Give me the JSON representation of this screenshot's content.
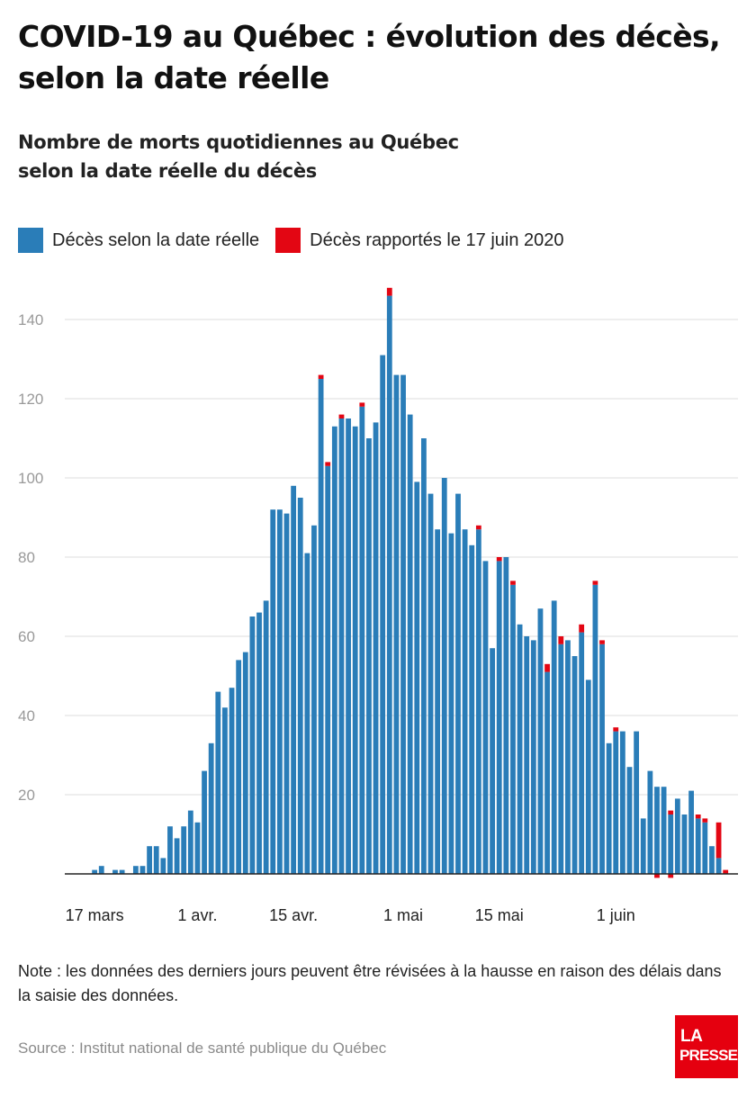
{
  "title": "COVID-19 au Québec : évolution des décès, selon la date réelle",
  "subtitle_line1": "Nombre de morts quotidiennes au Québec",
  "subtitle_line2": "selon la date réelle du décès",
  "note": "Note : les données des derniers jours peuvent être révisées à la hausse en raison des délais dans la saisie des données.",
  "source": "Source : Institut national de santé publique du Québec",
  "logo": {
    "line1": "LA",
    "line2": "PRESSE"
  },
  "colors": {
    "blue": "#2a7db8",
    "red": "#e30613",
    "grid": "#dddddd",
    "axis": "#222222"
  },
  "chart_data": {
    "type": "bar",
    "stacked": true,
    "start_date": "2020-03-15",
    "legend": [
      {
        "name": "Décès selon la date réelle",
        "color": "#2a7db8"
      },
      {
        "name": "Décès rapportés le 17 juin 2020",
        "color": "#e30613"
      }
    ],
    "y_ticks": [
      20,
      40,
      60,
      80,
      100,
      120,
      140
    ],
    "ylim": [
      0,
      150
    ],
    "grid": true,
    "x_tick_labels": [
      {
        "label": "17 mars",
        "index": 2
      },
      {
        "label": "1 avr.",
        "index": 17
      },
      {
        "label": "15 avr.",
        "index": 31
      },
      {
        "label": "1 mai",
        "index": 47
      },
      {
        "label": "15 mai",
        "index": 61
      },
      {
        "label": "1 juin",
        "index": 78
      }
    ],
    "series": [
      {
        "name": "Décès selon la date réelle",
        "values": [
          0,
          0,
          1,
          2,
          0,
          1,
          1,
          0,
          2,
          2,
          7,
          7,
          4,
          12,
          9,
          12,
          16,
          13,
          26,
          33,
          46,
          42,
          47,
          54,
          56,
          65,
          66,
          69,
          92,
          92,
          91,
          98,
          95,
          81,
          88,
          125,
          103,
          113,
          115,
          115,
          113,
          118,
          110,
          114,
          131,
          146,
          126,
          126,
          116,
          99,
          110,
          96,
          87,
          100,
          86,
          96,
          87,
          83,
          87,
          79,
          57,
          79,
          80,
          73,
          63,
          60,
          59,
          67,
          51,
          69,
          58,
          59,
          55,
          61,
          49,
          73,
          58,
          33,
          36,
          36,
          27,
          36,
          14,
          26,
          22,
          22,
          15,
          19,
          15,
          21,
          14,
          13,
          7,
          4,
          0
        ],
        "color": "#2a7db8"
      },
      {
        "name": "Décès rapportés le 17 juin 2020",
        "values": [
          0,
          0,
          0,
          0,
          0,
          0,
          0,
          0,
          0,
          0,
          0,
          0,
          0,
          0,
          0,
          0,
          0,
          0,
          0,
          0,
          0,
          0,
          0,
          0,
          0,
          0,
          0,
          0,
          0,
          0,
          0,
          0,
          0,
          0,
          0,
          1,
          1,
          0,
          1,
          0,
          0,
          1,
          0,
          0,
          0,
          2,
          0,
          0,
          0,
          0,
          0,
          0,
          0,
          0,
          0,
          0,
          0,
          0,
          1,
          0,
          0,
          1,
          0,
          1,
          0,
          0,
          0,
          0,
          2,
          0,
          2,
          0,
          0,
          2,
          0,
          1,
          1,
          0,
          1,
          0,
          0,
          0,
          0,
          0,
          0,
          0,
          1,
          0,
          0,
          0,
          1,
          1,
          0,
          9,
          1
        ],
        "color": "#e30613"
      }
    ],
    "negative_adjustments": [
      {
        "index": 84,
        "value": -1
      },
      {
        "index": 86,
        "value": -1
      }
    ]
  }
}
